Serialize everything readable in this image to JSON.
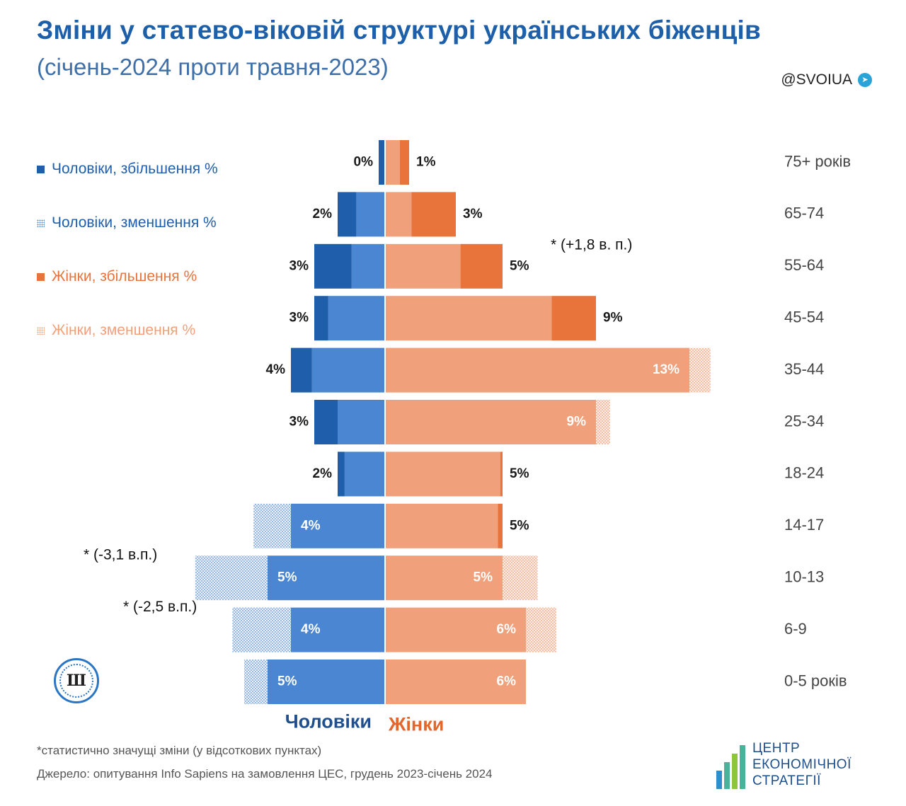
{
  "header": {
    "title": "Зміни у статево-віковій структурі українських біженців",
    "subtitle": "(січень-2024 проти травня-2023)",
    "handle": "@SVOIUA",
    "handle_icon": "telegram-icon"
  },
  "legend": [
    {
      "label": "Чоловіки, збільшення %",
      "color": "#1f5eaa",
      "pattern": "solid",
      "text_color": "#1f5eaa"
    },
    {
      "label": "Чоловіки, зменшення %",
      "color": "#4f8ad3",
      "pattern": "dotted",
      "text_color": "#1f5eaa"
    },
    {
      "label": "Жінки, збільшення %",
      "color": "#e8743b",
      "pattern": "solid",
      "text_color": "#e8743b"
    },
    {
      "label": "Жінки, зменшення %",
      "color": "#f2a07a",
      "pattern": "dotted",
      "text_color": "#f2a07a"
    }
  ],
  "chart_data": {
    "type": "bar",
    "orientation": "horizontal-pyramid",
    "categories": [
      "75+ років",
      "65-74",
      "55-64",
      "45-54",
      "35-44",
      "25-34",
      "18-24",
      "14-17",
      "10-13",
      "6-9",
      "0-5 років"
    ],
    "series": [
      {
        "name": "Чоловіки",
        "values": [
          0,
          2,
          3,
          3,
          4,
          3,
          2,
          4,
          5,
          4,
          5
        ],
        "labels": [
          "0%",
          "2%",
          "3%",
          "3%",
          "4%",
          "3%",
          "2%",
          "4%",
          "5%",
          "4%",
          "5%"
        ],
        "changes": [
          0.3,
          0.8,
          1.6,
          0.6,
          0.9,
          1.0,
          0.3,
          -1.6,
          -3.1,
          -2.5,
          -1.0
        ]
      },
      {
        "name": "Жінки",
        "values": [
          1,
          3,
          5,
          9,
          13,
          9,
          5,
          5,
          5,
          6,
          6
        ],
        "labels": [
          "1%",
          "3%",
          "5%",
          "9%",
          "13%",
          "9%",
          "5%",
          "5%",
          "5%",
          "6%",
          "6%"
        ],
        "changes": [
          0.4,
          1.9,
          1.8,
          1.9,
          -0.9,
          -0.6,
          0.1,
          0.2,
          -1.5,
          -1.3,
          0
        ]
      }
    ],
    "annotations": [
      {
        "category": "55-64",
        "series": "Жінки",
        "text": "* (+1,8 в. п.)"
      },
      {
        "category": "10-13",
        "series": "Чоловіки",
        "text": "* (-3,1 в.п.)"
      },
      {
        "category": "6-9",
        "series": "Чоловіки",
        "text": "* (-2,5 в.п.)"
      }
    ],
    "axis_labels": {
      "left": "Чоловіки",
      "right": "Жінки"
    },
    "colors": {
      "male_base": "#4a86d1",
      "male_increase": "#1f5eaa",
      "female_base": "#f0a07a",
      "female_increase": "#e8743b",
      "male_axis_label": "#1f4f8f",
      "female_axis_label": "#e2672e"
    }
  },
  "footer": {
    "footnote": "*статистично значущі зміни  (у відсоткових пунктах)",
    "source": "Джерело: опитування Info Sapiens на замовлення ЦЕС, грудень 2023-січень 2024",
    "logo_lines": [
      "ЦЕНТР",
      "ЕКОНОМІЧНОЇ",
      "СТРАТЕГІЇ"
    ],
    "logo_colors": [
      "#2e8fcf",
      "#46b39a",
      "#8cc63f",
      "#1d4f8a"
    ]
  }
}
